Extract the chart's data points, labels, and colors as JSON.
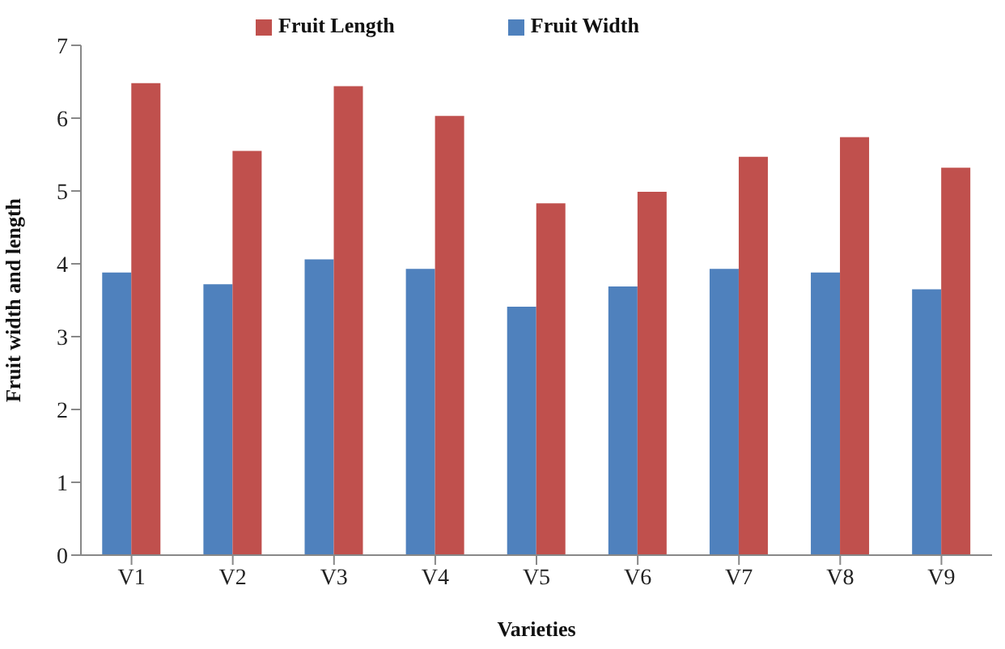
{
  "chart_data": {
    "type": "bar",
    "xlabel": "Varieties",
    "ylabel": "Fruit width and length",
    "categories": [
      "V1",
      "V2",
      "V3",
      "V4",
      "V5",
      "V6",
      "V7",
      "V8",
      "V9"
    ],
    "series": [
      {
        "name": "Fruit Width",
        "color": "#4f81bd",
        "values": [
          3.88,
          3.72,
          4.06,
          3.93,
          3.41,
          3.69,
          3.93,
          3.88,
          3.65
        ]
      },
      {
        "name": "Fruit Length",
        "color": "#c0504d",
        "values": [
          6.48,
          5.55,
          6.44,
          6.03,
          4.83,
          4.99,
          5.47,
          5.74,
          5.32
        ]
      }
    ],
    "ylim": [
      0,
      7
    ],
    "yticks": [
      0,
      1,
      2,
      3,
      4,
      5,
      6,
      7
    ],
    "grid": false,
    "legend": "top"
  }
}
